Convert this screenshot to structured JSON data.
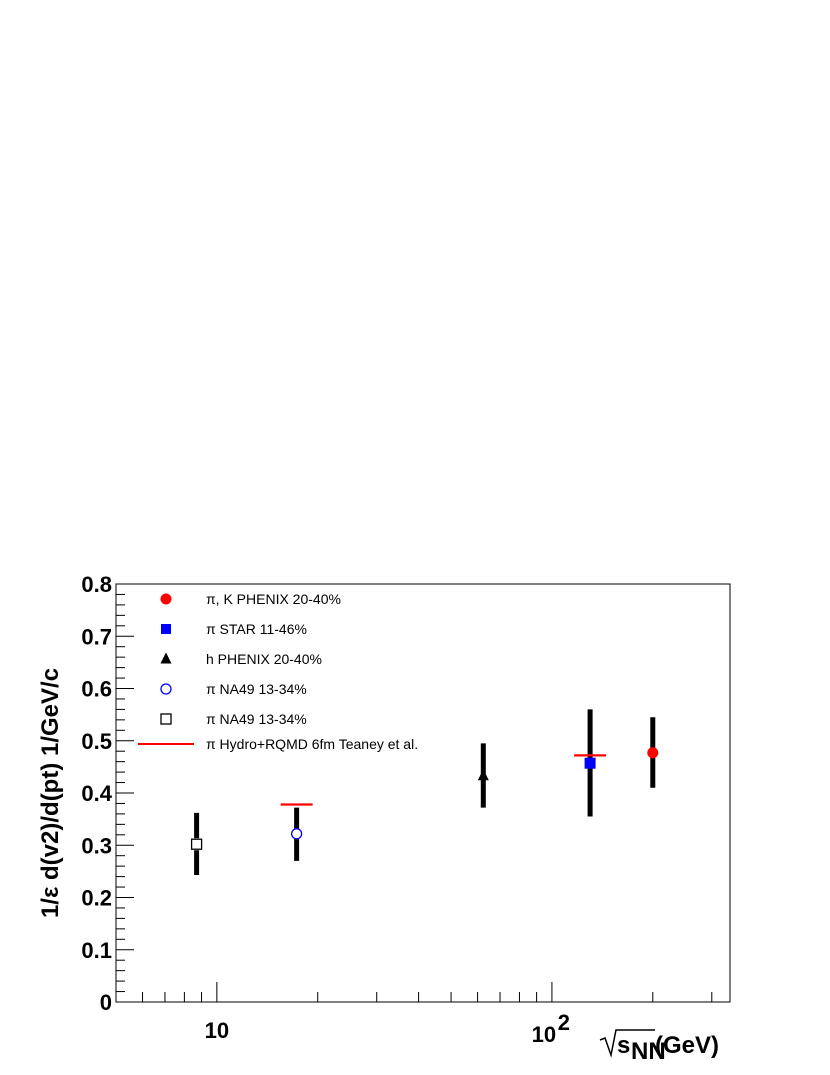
{
  "chart_data": {
    "type": "scatter",
    "x_scale": "log",
    "xlim": [
      5,
      340
    ],
    "ylim": [
      0,
      0.8
    ],
    "ylabel": "1/ε d(v2)/d(pt) 1/GeV/c",
    "xlabel_radicand": "s",
    "xlabel_subscript": "NN",
    "xlabel_unit": " (GeV)",
    "y_ticks": [
      "0",
      "0.1",
      "0.2",
      "0.3",
      "0.4",
      "0.5",
      "0.6",
      "0.7",
      "0.8"
    ],
    "x_tick_10": "10",
    "x_tick_100_base": "10",
    "x_tick_100_exp": "2",
    "legend": [
      {
        "label": "π, K PHENIX 20-40%",
        "marker": "filled-circle",
        "color": "#ff0000"
      },
      {
        "label": "π STAR 11-46%",
        "marker": "filled-square",
        "color": "#0000ff"
      },
      {
        "label": "h PHENIX 20-40%",
        "marker": "filled-triangle",
        "color": "#000000"
      },
      {
        "label": "π NA49 13-34%",
        "marker": "open-circle",
        "color": "#0000ff"
      },
      {
        "label": "π NA49 13-34%",
        "marker": "open-square",
        "color": "#000000"
      },
      {
        "label": "π Hydro+RQMD 6fm Teaney et al.",
        "marker": "line",
        "color": "#ff0000"
      }
    ],
    "series": [
      {
        "name": "π, K PHENIX 20-40%",
        "marker": "filled-circle",
        "color": "#ff0000",
        "points": [
          {
            "x": 200,
            "y": 0.477,
            "ylow": 0.41,
            "yhigh": 0.545
          }
        ]
      },
      {
        "name": "π STAR 11-46%",
        "marker": "filled-square",
        "color": "#0000ff",
        "points": [
          {
            "x": 130,
            "y": 0.457,
            "ylow": 0.355,
            "yhigh": 0.56
          }
        ]
      },
      {
        "name": "h PHENIX 20-40%",
        "marker": "filled-triangle",
        "color": "#000000",
        "points": [
          {
            "x": 62.4,
            "y": 0.433,
            "ylow": 0.372,
            "yhigh": 0.495
          }
        ]
      },
      {
        "name": "π NA49 13-34%",
        "marker": "open-circle",
        "color": "#0000ff",
        "points": [
          {
            "x": 17.3,
            "y": 0.322,
            "ylow": 0.27,
            "yhigh": 0.372
          }
        ]
      },
      {
        "name": "π NA49 13-34%",
        "marker": "open-square",
        "color": "#000000",
        "points": [
          {
            "x": 8.7,
            "y": 0.302,
            "ylow": 0.243,
            "yhigh": 0.362
          }
        ]
      },
      {
        "name": "π Hydro+RQMD 6fm Teaney et al.",
        "marker": "line",
        "color": "#ff0000",
        "points": [
          {
            "x": 17.3,
            "y": 0.378
          },
          {
            "x": 130,
            "y": 0.472
          }
        ]
      }
    ]
  }
}
